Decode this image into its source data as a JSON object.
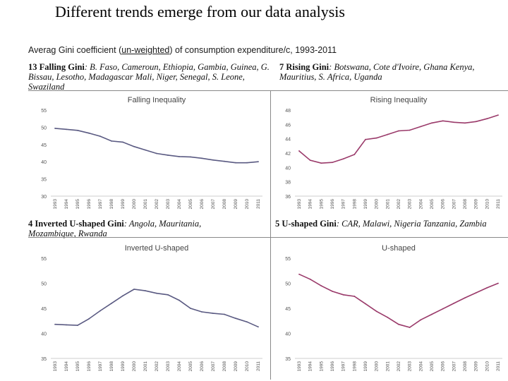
{
  "slide": {
    "title": "Different trends emerge from our data analysis",
    "subtitle_prefix": "Averag Gini coefficient (",
    "subtitle_underlined": "un-weighted",
    "subtitle_suffix": ") of consumption expenditure/c, 1993-2011"
  },
  "groups": [
    {
      "head": "13 Falling Gini",
      "countries": ": B. Faso, Cameroun, Ethiopia, Gambia, Guinea, G. Bissau, Lesotho, Madagascar Mali, Niger, Senegal,  S. Leone, Swaziland"
    },
    {
      "head": "7 Rising Gini",
      "countries": ": Botswana, Cote d'Ivoire, Ghana Kenya, Mauritius, S. Africa, Uganda"
    },
    {
      "head": "4 Inverted U-shaped Gini",
      "countries": ":  Angola, Mauritania, Mozambique, Rwanda"
    },
    {
      "head": "5 U-shaped Gini",
      "countries": ": CAR, Malawi, Nigeria Tanzania, Zambia"
    }
  ],
  "chart_data": [
    {
      "type": "line",
      "title": "Falling Inequality",
      "x": [
        "1993",
        "1994",
        "1995",
        "1996",
        "1997",
        "1998",
        "1999",
        "2000",
        "2001",
        "2002",
        "2003",
        "2004",
        "2005",
        "2006",
        "2007",
        "2008",
        "2009",
        "2010",
        "2011"
      ],
      "values": [
        49.7,
        49.4,
        49.1,
        48.3,
        47.4,
        46.0,
        45.7,
        44.4,
        43.4,
        42.4,
        41.9,
        41.5,
        41.4,
        41.0,
        40.5,
        40.1,
        39.7,
        39.7,
        40.0
      ],
      "ylim": [
        30,
        55
      ],
      "yticks": [
        "30",
        "35",
        "40",
        "45",
        "50",
        "55"
      ],
      "color": "#5a5a82",
      "grid": false
    },
    {
      "type": "line",
      "title": "Rising Inequality",
      "x": [
        "1993",
        "1994",
        "1995",
        "1996",
        "1997",
        "1998",
        "1999",
        "2000",
        "2001",
        "2002",
        "2003",
        "2004",
        "2005",
        "2006",
        "2007",
        "2008",
        "2009",
        "2010",
        "2011"
      ],
      "values": [
        42.3,
        41.0,
        40.6,
        40.7,
        41.2,
        41.8,
        43.9,
        44.1,
        44.6,
        45.1,
        45.2,
        45.7,
        46.2,
        46.5,
        46.3,
        46.2,
        46.4,
        46.8,
        47.3
      ],
      "ylim": [
        36,
        48
      ],
      "yticks": [
        "36",
        "38",
        "40",
        "42",
        "44",
        "46",
        "48"
      ],
      "color": "#9a3a6a",
      "grid": false
    },
    {
      "type": "line",
      "title": "Inverted U-shaped",
      "x": [
        "1993",
        "1994",
        "1995",
        "1996",
        "1997",
        "1998",
        "1999",
        "2000",
        "2001",
        "2002",
        "2003",
        "2004",
        "2005",
        "2006",
        "2007",
        "2008",
        "2009",
        "2010",
        "2011"
      ],
      "values": [
        41.8,
        41.7,
        41.6,
        42.9,
        44.5,
        46.0,
        47.5,
        48.8,
        48.5,
        48.0,
        47.7,
        46.6,
        45.0,
        44.3,
        44.0,
        43.8,
        43.0,
        42.3,
        41.3
      ],
      "ylim": [
        35,
        55
      ],
      "yticks": [
        "35",
        "40",
        "45",
        "50",
        "55"
      ],
      "color": "#5a5a82",
      "grid": false
    },
    {
      "type": "line",
      "title": "U-shaped",
      "x": [
        "1993",
        "1994",
        "1995",
        "1996",
        "1997",
        "1998",
        "1999",
        "2000",
        "2001",
        "2002",
        "2003",
        "2004",
        "2005",
        "2006",
        "2007",
        "2008",
        "2009",
        "2010",
        "2011"
      ],
      "values": [
        51.8,
        50.8,
        49.5,
        48.4,
        47.7,
        47.4,
        45.9,
        44.4,
        43.2,
        41.8,
        41.2,
        42.7,
        43.8,
        44.9,
        46.0,
        47.1,
        48.1,
        49.1,
        50.0
      ],
      "ylim": [
        35,
        55
      ],
      "yticks": [
        "35",
        "40",
        "45",
        "50",
        "55"
      ],
      "color": "#9a3a6a",
      "grid": false
    }
  ]
}
